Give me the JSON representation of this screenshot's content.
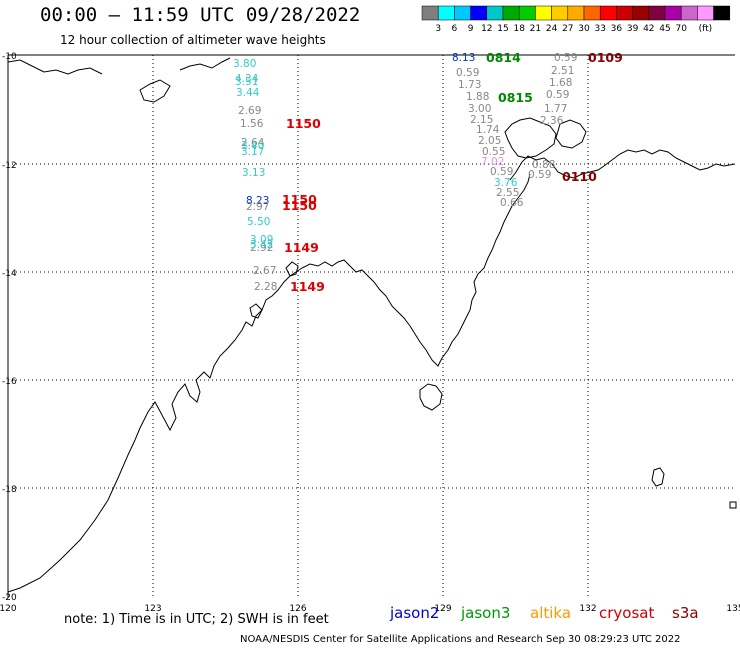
{
  "header": {
    "title": "00:00 – 11:59 UTC 09/28/2022",
    "subtitle": "12 hour collection of altimeter wave heights"
  },
  "colorbar": {
    "swatches": [
      "#7f7f7f",
      "#00ffff",
      "#00c8ff",
      "#0000ff",
      "#00c8c8",
      "#00aa00",
      "#00cc00",
      "#ffff00",
      "#ffcc00",
      "#ffaa00",
      "#ff6600",
      "#ff0000",
      "#cc0000",
      "#990000",
      "#800040",
      "#aa00aa",
      "#cc66cc",
      "#ff99ff",
      "#000000"
    ],
    "labels": [
      "3",
      "6",
      "9",
      "12",
      "15",
      "18",
      "21",
      "24",
      "27",
      "30",
      "33",
      "36",
      "39",
      "42",
      "45",
      "70",
      "(ft)"
    ]
  },
  "axes": {
    "lat_labels": [
      "-10",
      "-12",
      "-14",
      "-16",
      "-18",
      "-20"
    ],
    "lon_labels": [
      "120",
      "123",
      "126",
      "129",
      "132",
      "135"
    ]
  },
  "observations": [
    {
      "text": "3.80",
      "color": "#33cccc"
    },
    {
      "text": "4.34",
      "color": "#33cccc"
    },
    {
      "text": "3.51",
      "color": "#33cccc"
    },
    {
      "text": "3.44",
      "color": "#33cccc"
    },
    {
      "text": "2.69",
      "color": "#888888"
    },
    {
      "text": "1.56",
      "color": "#888888"
    },
    {
      "text": "2.64",
      "color": "#888888"
    },
    {
      "text": "3.40",
      "color": "#33cccc"
    },
    {
      "text": "3.17",
      "color": "#33cccc"
    },
    {
      "text": "3.13",
      "color": "#33cccc"
    },
    {
      "text": "8.23",
      "color": "#0033cc"
    },
    {
      "text": "2.97",
      "color": "#888888"
    },
    {
      "text": "5.50",
      "color": "#33cccc"
    },
    {
      "text": "3.09",
      "color": "#33cccc"
    },
    {
      "text": "2.92",
      "color": "#888888"
    },
    {
      "text": "3.42",
      "color": "#33cccc"
    },
    {
      "text": "2.67",
      "color": "#888888"
    },
    {
      "text": "2.28",
      "color": "#888888"
    },
    {
      "text": "8.13",
      "color": "#0033cc"
    },
    {
      "text": "0.59",
      "color": "#888888"
    },
    {
      "text": "1.73",
      "color": "#888888"
    },
    {
      "text": "1.88",
      "color": "#888888"
    },
    {
      "text": "3.00",
      "color": "#888888"
    },
    {
      "text": "2.15",
      "color": "#888888"
    },
    {
      "text": "1.74",
      "color": "#888888"
    },
    {
      "text": "2.05",
      "color": "#888888"
    },
    {
      "text": "0.55",
      "color": "#888888"
    },
    {
      "text": "7.02",
      "color": "#ee88ee"
    },
    {
      "text": "0.59",
      "color": "#888888"
    },
    {
      "text": "3.76",
      "color": "#33cccc"
    },
    {
      "text": "2.55",
      "color": "#888888"
    },
    {
      "text": "0.66",
      "color": "#888888"
    },
    {
      "text": "0.59",
      "color": "#888888"
    },
    {
      "text": "2.51",
      "color": "#888888"
    },
    {
      "text": "1.68",
      "color": "#888888"
    },
    {
      "text": "0.59",
      "color": "#888888"
    },
    {
      "text": "1.77",
      "color": "#888888"
    },
    {
      "text": "2.36",
      "color": "#888888"
    },
    {
      "text": "0.88",
      "color": "#888888"
    },
    {
      "text": "0.59",
      "color": "#888888"
    }
  ],
  "pass_times": [
    {
      "text": "1150",
      "color": "#dd0000"
    },
    {
      "text": "1150",
      "color": "#dd0000"
    },
    {
      "text": "1150",
      "color": "#dd0000"
    },
    {
      "text": "1149",
      "color": "#dd0000"
    },
    {
      "text": "1149",
      "color": "#dd0000"
    },
    {
      "text": "0814",
      "color": "#008800"
    },
    {
      "text": "0815",
      "color": "#008800"
    },
    {
      "text": "0109",
      "color": "#880000"
    },
    {
      "text": "0110",
      "color": "#880000"
    }
  ],
  "footer": {
    "note": "note: 1) Time is in UTC; 2) SWH is in feet",
    "credit": "NOAA/NESDIS Center for Satellite Applications and Research   Sep 30 08:29:23 UTC 2022",
    "satellites": [
      {
        "name": "jason2",
        "color": "#0000cc"
      },
      {
        "name": "jason3",
        "color": "#009900"
      },
      {
        "name": "altika",
        "color": "#ff9900"
      },
      {
        "name": "cryosat",
        "color": "#cc0000"
      },
      {
        "name": "s3a",
        "color": "#880000"
      }
    ]
  }
}
